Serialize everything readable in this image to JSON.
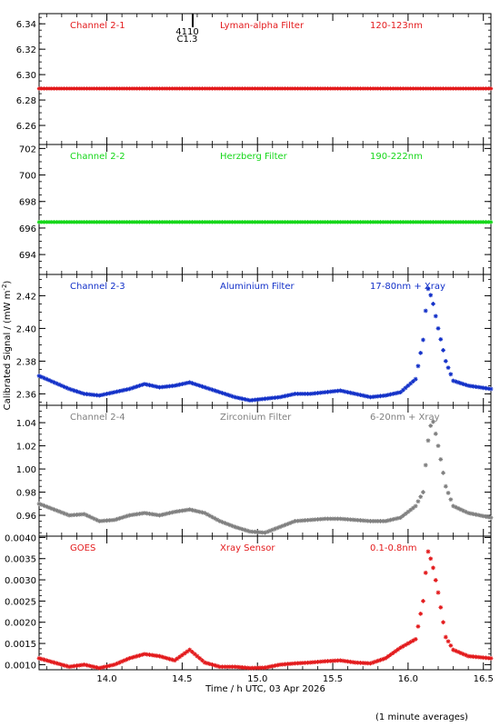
{
  "figure": {
    "ylabel": "Calibrated Signal / (mW m",
    "ylabel_sup": "-2",
    "ylabel_end": ")",
    "xlabel": "Time / h UTC, 03 Apr 2026",
    "footnote": "(1 minute averages)",
    "flare_marker": {
      "time": 14.57,
      "label1": "4110",
      "label2": "C1.3"
    }
  },
  "chart_data": [
    {
      "type": "scatter",
      "channel": "Channel 2-1",
      "filter": "Lyman-alpha Filter",
      "band": "120-123nm",
      "color": "#e31a1c",
      "marker": "asterisk",
      "xlim": [
        13.55,
        16.55
      ],
      "ylim": [
        6.245,
        6.348
      ],
      "yticks": [
        6.26,
        6.28,
        6.3,
        6.32,
        6.34
      ],
      "ytick_labels": [
        "6.26",
        "6.28",
        "6.30",
        "6.32",
        "6.34"
      ],
      "series": [
        {
          "x": [
            13.55,
            16.55
          ],
          "y": [
            6.289,
            6.289
          ]
        }
      ]
    },
    {
      "type": "scatter",
      "channel": "Channel 2-2",
      "filter": "Herzberg Filter",
      "band": "190-222nm",
      "color": "#16d71a",
      "marker": "asterisk",
      "xlim": [
        13.55,
        16.55
      ],
      "ylim": [
        692.5,
        702.3
      ],
      "yticks": [
        694,
        696,
        698,
        700,
        702
      ],
      "ytick_labels": [
        "694",
        "696",
        "698",
        "700",
        "702"
      ],
      "series": [
        {
          "x": [
            13.55,
            16.55
          ],
          "y": [
            696.45,
            696.45
          ]
        }
      ]
    },
    {
      "type": "scatter",
      "channel": "Channel 2-3",
      "filter": "Aluminium Filter",
      "band": "17-80nm + Xray",
      "color": "#1230c8",
      "marker": "asterisk",
      "xlim": [
        13.55,
        16.55
      ],
      "ylim": [
        2.353,
        2.433
      ],
      "yticks": [
        2.36,
        2.38,
        2.4,
        2.42
      ],
      "ytick_labels": [
        "2.36",
        "2.38",
        "2.40",
        "2.42"
      ],
      "series": [
        {
          "x": [
            13.55,
            13.65,
            13.75,
            13.85,
            13.95,
            14.05,
            14.15,
            14.25,
            14.35,
            14.45,
            14.55,
            14.65,
            14.75,
            14.85,
            14.95,
            15.05,
            15.15,
            15.25,
            15.35,
            15.45,
            15.55,
            15.65,
            15.75,
            15.85,
            15.95,
            16.05,
            16.1,
            16.13,
            16.16,
            16.2,
            16.25,
            16.3,
            16.4,
            16.55
          ],
          "y": [
            2.371,
            2.367,
            2.363,
            2.36,
            2.359,
            2.361,
            2.363,
            2.366,
            2.364,
            2.365,
            2.367,
            2.364,
            2.361,
            2.358,
            2.356,
            2.357,
            2.358,
            2.36,
            2.36,
            2.361,
            2.362,
            2.36,
            2.358,
            2.359,
            2.361,
            2.369,
            2.393,
            2.425,
            2.418,
            2.4,
            2.38,
            2.368,
            2.365,
            2.363
          ]
        }
      ]
    },
    {
      "type": "scatter",
      "channel": "Channel 2-4",
      "filter": "Zirconium Filter",
      "band": "6-20nm + Xray",
      "color": "#808080",
      "marker": "asterisk",
      "xlim": [
        13.55,
        16.55
      ],
      "ylim": [
        0.942,
        1.055
      ],
      "yticks": [
        0.96,
        0.98,
        1.0,
        1.02,
        1.04
      ],
      "ytick_labels": [
        "0.96",
        "0.98",
        "1.00",
        "1.02",
        "1.04"
      ],
      "series": [
        {
          "x": [
            13.55,
            13.65,
            13.75,
            13.85,
            13.95,
            14.05,
            14.15,
            14.25,
            14.35,
            14.45,
            14.55,
            14.65,
            14.75,
            14.85,
            14.95,
            15.05,
            15.15,
            15.25,
            15.35,
            15.45,
            15.55,
            15.65,
            15.75,
            15.85,
            15.95,
            16.05,
            16.1,
            16.13,
            16.16,
            16.2,
            16.25,
            16.3,
            16.4,
            16.55
          ],
          "y": [
            0.97,
            0.965,
            0.96,
            0.961,
            0.955,
            0.956,
            0.96,
            0.962,
            0.96,
            0.963,
            0.965,
            0.962,
            0.955,
            0.95,
            0.946,
            0.945,
            0.95,
            0.955,
            0.956,
            0.957,
            0.957,
            0.956,
            0.955,
            0.955,
            0.958,
            0.968,
            0.98,
            1.022,
            1.045,
            1.02,
            0.985,
            0.968,
            0.962,
            0.958
          ]
        }
      ]
    },
    {
      "type": "scatter",
      "channel": "GOES",
      "filter": "Xray Sensor",
      "band": "0.1-0.8nm",
      "color": "#e31a1c",
      "marker": "asterisk",
      "xlim": [
        13.55,
        16.55
      ],
      "ylim": [
        0.00088,
        0.00403
      ],
      "yticks": [
        0.001,
        0.0015,
        0.002,
        0.0025,
        0.003,
        0.0035,
        0.004
      ],
      "ytick_labels": [
        "0.0010",
        "0.0015",
        "0.0020",
        "0.0025",
        "0.0030",
        "0.0035",
        "0.0040"
      ],
      "series": [
        {
          "x": [
            13.55,
            13.65,
            13.75,
            13.85,
            13.95,
            14.05,
            14.15,
            14.25,
            14.35,
            14.45,
            14.55,
            14.65,
            14.75,
            14.85,
            14.95,
            15.05,
            15.15,
            15.25,
            15.35,
            15.45,
            15.55,
            15.65,
            15.75,
            15.85,
            15.95,
            16.05,
            16.1,
            16.13,
            16.16,
            16.2,
            16.25,
            16.3,
            16.4,
            16.55
          ],
          "y": [
            0.00115,
            0.00105,
            0.00095,
            0.001,
            0.00092,
            0.001,
            0.00115,
            0.00125,
            0.0012,
            0.0011,
            0.00135,
            0.00105,
            0.00095,
            0.00095,
            0.00092,
            0.00093,
            0.001,
            0.00103,
            0.00105,
            0.00108,
            0.0011,
            0.00105,
            0.00103,
            0.00115,
            0.0014,
            0.0016,
            0.0025,
            0.0037,
            0.0034,
            0.0027,
            0.00165,
            0.00135,
            0.0012,
            0.00115
          ]
        }
      ]
    }
  ]
}
